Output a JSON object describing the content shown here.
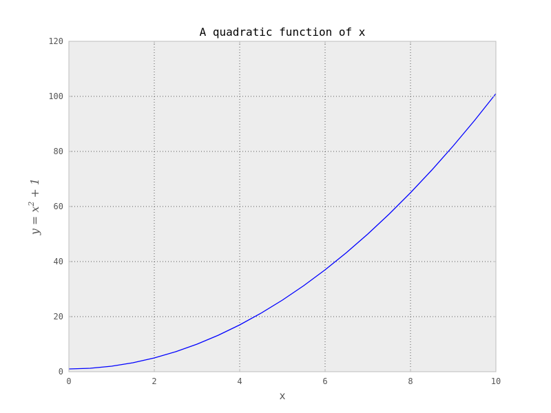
{
  "chart_data": {
    "type": "line",
    "title": "A quadratic function of x",
    "xlabel": "x",
    "ylabel": {
      "prefix": "y = x",
      "superscript": "2",
      "suffix": " + 1"
    },
    "xlim": [
      0,
      10
    ],
    "ylim": [
      0,
      120
    ],
    "xticks": [
      0,
      2,
      4,
      6,
      8,
      10
    ],
    "yticks": [
      0,
      20,
      40,
      60,
      80,
      100,
      120
    ],
    "xtick_labels": [
      "0",
      "2",
      "4",
      "6",
      "8",
      "10"
    ],
    "ytick_labels": [
      "0",
      "20",
      "40",
      "60",
      "80",
      "100",
      "120"
    ],
    "grid": true,
    "series": [
      {
        "color": "#0000ff",
        "x": [
          0,
          0.5,
          1,
          1.5,
          2,
          2.5,
          3,
          3.5,
          4,
          4.5,
          5,
          5.5,
          6,
          6.5,
          7,
          7.5,
          8,
          8.5,
          9,
          9.5,
          10
        ],
        "y": [
          1,
          1.25,
          2,
          3.25,
          5,
          7.25,
          10,
          13.25,
          17,
          21.25,
          26,
          31.25,
          37,
          43.25,
          50,
          57.25,
          65,
          73.25,
          82,
          91.25,
          101
        ]
      }
    ],
    "colors": {
      "plot_background": "#ededed",
      "frame": "#bcbcbc",
      "grid": "#555555"
    }
  }
}
